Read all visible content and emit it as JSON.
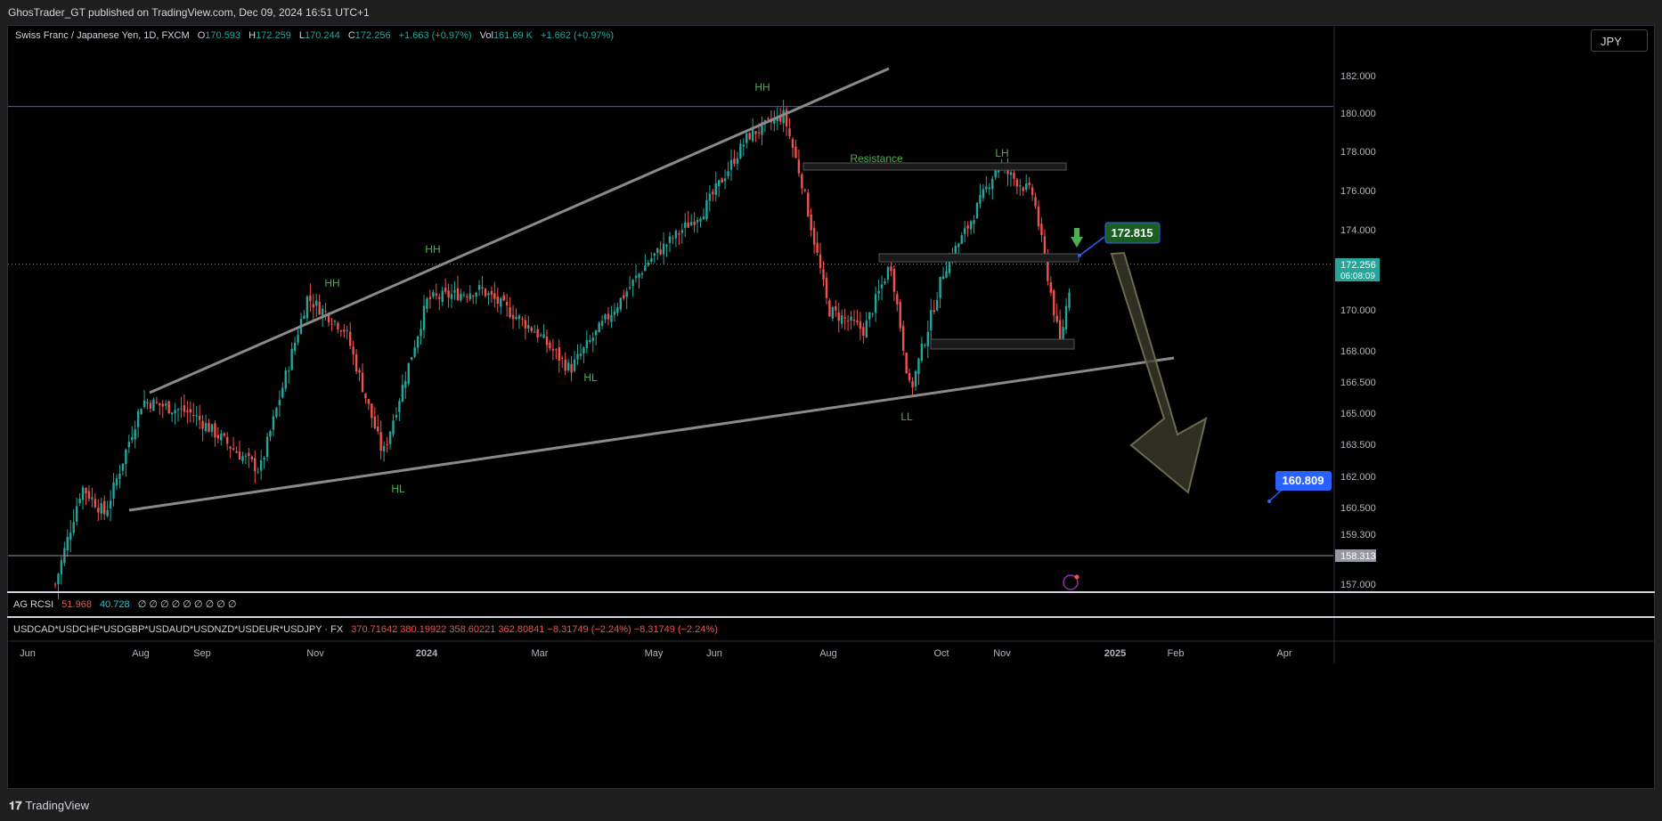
{
  "header": {
    "publisher": "GhosTrader_GT published on TradingView.com, Dec 09, 2024 16:51 UTC+1"
  },
  "symbol_line": {
    "title": "Swiss Franc / Japanese Yen, 1D, FXCM",
    "open_label": "O",
    "open": "170.593",
    "high_label": "H",
    "high": "172.259",
    "low_label": "L",
    "low": "170.244",
    "close_label": "C",
    "close": "172.256",
    "change": "+1.663 (+0.97%)",
    "vol_label": "Vol",
    "vol": "161.69 K",
    "vol_change": "+1.662 (+0.97%)"
  },
  "currency_button": "JPY",
  "indicator_rcsi": {
    "name": "AG RCSI",
    "v1": "51.968",
    "v2": "40.728",
    "rest": "∅ ∅ ∅ ∅ ∅ ∅ ∅ ∅ ∅"
  },
  "indicator_fx": {
    "name": "USDCAD*USDCHF*USDGBP*USDAUD*USDNZD*USDEUR*USDJPY · FX",
    "values": "370.71642  380.19922  358.60221  362.80841  −8.31749 (−2.24%)  −8.31749 (−2.24%)"
  },
  "footer": {
    "brand": "TradingView"
  },
  "colors": {
    "up": "#26a69a",
    "down": "#ef5350",
    "label_green": "#4caf50",
    "blue": "#2962ff",
    "bg": "#000000"
  },
  "chart_data": {
    "type": "candlestick",
    "symbol": "CHFJPY",
    "timeframe": "1D",
    "ylim": [
      156.4,
      185.3
    ],
    "y_ticks": [
      "157.000",
      "158.313",
      "159.300",
      "160.500",
      "162.000",
      "163.500",
      "165.000",
      "166.500",
      "168.000",
      "170.000",
      "172.000",
      "174.000",
      "176.000",
      "178.000",
      "180.000",
      "182.000"
    ],
    "x_ticks": [
      "Jun",
      "Aug",
      "Sep",
      "Nov",
      "2024",
      "Mar",
      "May",
      "Jun",
      "Aug",
      "Oct",
      "Nov",
      "2025",
      "Feb",
      "Apr"
    ],
    "price_path": [
      {
        "date": "Jun 2023",
        "price": 157.0
      },
      {
        "date": "Jul 2023",
        "price": 161.5
      },
      {
        "date": "Jul 2023",
        "price": 160.2
      },
      {
        "date": "Aug 2023",
        "price": 165.6
      },
      {
        "date": "Sep 2023",
        "price": 165.0
      },
      {
        "date": "Oct 2023",
        "price": 163.0
      },
      {
        "date": "Oct 2023",
        "price": 162.3
      },
      {
        "date": "Nov 2023",
        "price": 170.6
      },
      {
        "date": "Nov 2023",
        "price": 169.0
      },
      {
        "date": "Dec 2023",
        "price": 163.0
      },
      {
        "date": "Jan 2024",
        "price": 170.5
      },
      {
        "date": "Feb 2024",
        "price": 171.0
      },
      {
        "date": "Mar 2024",
        "price": 169.0
      },
      {
        "date": "Apr 2024",
        "price": 167.1
      },
      {
        "date": "May 2024",
        "price": 169.5
      },
      {
        "date": "May 2024",
        "price": 172.5
      },
      {
        "date": "Jun 2024",
        "price": 175.0
      },
      {
        "date": "Jun 2024",
        "price": 178.8
      },
      {
        "date": "Jul 2024",
        "price": 179.9
      },
      {
        "date": "Jul 2024",
        "price": 176.5
      },
      {
        "date": "Aug 2024",
        "price": 170.0
      },
      {
        "date": "Aug 2024",
        "price": 169.0
      },
      {
        "date": "Sep 2024",
        "price": 172.3
      },
      {
        "date": "Sep 2024",
        "price": 166.0
      },
      {
        "date": "Oct 2024",
        "price": 172.0
      },
      {
        "date": "Oct 2024",
        "price": 174.0
      },
      {
        "date": "Oct 2024",
        "price": 177.3
      },
      {
        "date": "Nov 2024",
        "price": 175.8
      },
      {
        "date": "Nov 2024",
        "price": 172.0
      },
      {
        "date": "Dec 2024",
        "price": 168.3
      },
      {
        "date": "Dec 09 2024",
        "price": 172.256
      }
    ],
    "current_price": "172.256",
    "countdown": "06:08:09",
    "horizontal_lines": [
      {
        "price": 180.35,
        "color": "#2962ff"
      },
      {
        "price": 158.313,
        "color": "#9598a1"
      }
    ],
    "structure_labels": [
      "HH",
      "HH",
      "HH",
      "HL",
      "HL",
      "LL",
      "LH",
      "Resistance"
    ],
    "targets": [
      "172.815",
      "160.809"
    ],
    "annotations": [
      "rising wedge trendlines",
      "resistance zone",
      "support zones",
      "bearish projection arrow"
    ]
  }
}
